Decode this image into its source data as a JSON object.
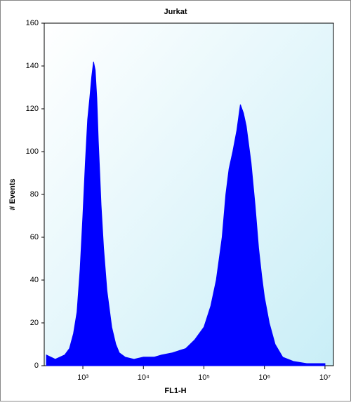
{
  "chart_data": {
    "type": "area",
    "title": "Jurkat",
    "x_label": "FL1-H",
    "y_label": "# Events",
    "x": [
      250,
      350,
      500,
      600,
      700,
      800,
      900,
      1000,
      1100,
      1200,
      1300,
      1400,
      1500,
      1600,
      1700,
      1800,
      1900,
      2000,
      2200,
      2500,
      3000,
      3500,
      4000,
      5000,
      7000,
      10000,
      15000,
      20000,
      30000,
      50000,
      70000,
      100000,
      130000,
      160000,
      200000,
      230000,
      260000,
      300000,
      350000,
      400000,
      450000,
      500000,
      600000,
      700000,
      800000,
      900000,
      1000000,
      1200000,
      1500000,
      2000000,
      3000000,
      5000000,
      10000000
    ],
    "values": [
      5,
      3,
      5,
      8,
      15,
      25,
      45,
      70,
      95,
      115,
      125,
      135,
      142,
      138,
      125,
      105,
      90,
      75,
      55,
      35,
      18,
      10,
      6,
      4,
      3,
      4,
      4,
      5,
      6,
      8,
      12,
      18,
      28,
      40,
      60,
      80,
      92,
      100,
      110,
      122,
      118,
      112,
      95,
      75,
      55,
      42,
      32,
      20,
      10,
      4,
      2,
      1,
      1
    ],
    "color": "#0000ff",
    "xscale": "log",
    "xlim": [
      230,
      13800000
    ],
    "ylim": [
      0,
      160
    ],
    "xticks": [
      {
        "value": 1000,
        "label": "10³"
      },
      {
        "value": 10000,
        "label": "10⁴"
      },
      {
        "value": 100000,
        "label": "10⁵"
      },
      {
        "value": 1000000,
        "label": "10⁶"
      },
      {
        "value": 10000000,
        "label": "10⁷"
      }
    ],
    "yticks": [
      0,
      20,
      40,
      60,
      80,
      100,
      120,
      140,
      160
    ]
  }
}
